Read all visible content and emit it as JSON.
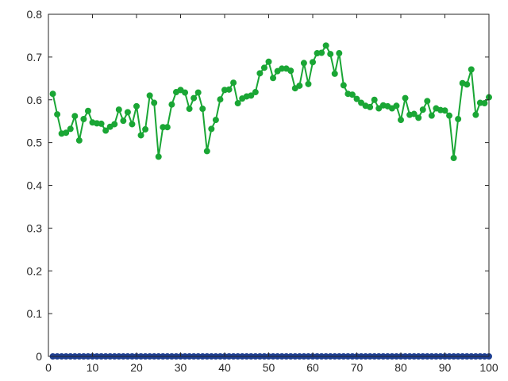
{
  "chart_data": {
    "type": "line",
    "title": "",
    "xlabel": "",
    "ylabel": "",
    "xlim": [
      0,
      100
    ],
    "ylim": [
      0,
      0.8
    ],
    "xticks": [
      0,
      10,
      20,
      30,
      40,
      50,
      60,
      70,
      80,
      90,
      100
    ],
    "yticks": [
      0,
      0.1,
      0.2,
      0.3,
      0.4,
      0.5,
      0.6,
      0.7,
      0.8
    ],
    "grid": false,
    "legend": "none",
    "x": [
      1,
      2,
      3,
      4,
      5,
      6,
      7,
      8,
      9,
      10,
      11,
      12,
      13,
      14,
      15,
      16,
      17,
      18,
      19,
      20,
      21,
      22,
      23,
      24,
      25,
      26,
      27,
      28,
      29,
      30,
      31,
      32,
      33,
      34,
      35,
      36,
      37,
      38,
      39,
      40,
      41,
      42,
      43,
      44,
      45,
      46,
      47,
      48,
      49,
      50,
      51,
      52,
      53,
      54,
      55,
      56,
      57,
      58,
      59,
      60,
      61,
      62,
      63,
      64,
      65,
      66,
      67,
      68,
      69,
      70,
      71,
      72,
      73,
      74,
      75,
      76,
      77,
      78,
      79,
      80,
      81,
      82,
      83,
      84,
      85,
      86,
      87,
      88,
      89,
      90,
      91,
      92,
      93,
      94,
      95,
      96,
      97,
      98,
      99,
      100
    ],
    "series": [
      {
        "color": "#1aa635",
        "marker": "circle",
        "values": [
          0.614,
          0.566,
          0.521,
          0.523,
          0.532,
          0.562,
          0.505,
          0.555,
          0.574,
          0.547,
          0.545,
          0.544,
          0.528,
          0.537,
          0.543,
          0.577,
          0.551,
          0.571,
          0.543,
          0.585,
          0.517,
          0.531,
          0.61,
          0.593,
          0.467,
          0.536,
          0.536,
          0.589,
          0.618,
          0.623,
          0.617,
          0.579,
          0.604,
          0.617,
          0.579,
          0.48,
          0.532,
          0.553,
          0.601,
          0.623,
          0.624,
          0.64,
          0.592,
          0.603,
          0.608,
          0.61,
          0.618,
          0.662,
          0.675,
          0.689,
          0.651,
          0.667,
          0.673,
          0.673,
          0.668,
          0.627,
          0.633,
          0.686,
          0.637,
          0.688,
          0.709,
          0.71,
          0.727,
          0.707,
          0.661,
          0.709,
          0.634,
          0.614,
          0.612,
          0.602,
          0.593,
          0.586,
          0.583,
          0.6,
          0.58,
          0.587,
          0.585,
          0.58,
          0.586,
          0.553,
          0.604,
          0.565,
          0.567,
          0.558,
          0.577,
          0.597,
          0.563,
          0.58,
          0.576,
          0.575,
          0.563,
          0.464,
          0.555,
          0.639,
          0.636,
          0.671,
          0.565,
          0.593,
          0.592,
          0.606
        ]
      },
      {
        "color": "#1f3f91",
        "marker": "circle",
        "values": [
          0,
          0,
          0,
          0,
          0,
          0,
          0,
          0,
          0,
          0,
          0,
          0,
          0,
          0,
          0,
          0,
          0,
          0,
          0,
          0,
          0,
          0,
          0,
          0,
          0,
          0,
          0,
          0,
          0,
          0,
          0,
          0,
          0,
          0,
          0,
          0,
          0,
          0,
          0,
          0,
          0,
          0,
          0,
          0,
          0,
          0,
          0,
          0,
          0,
          0,
          0,
          0,
          0,
          0,
          0,
          0,
          0,
          0,
          0,
          0,
          0,
          0,
          0,
          0,
          0,
          0,
          0,
          0,
          0,
          0,
          0,
          0,
          0,
          0,
          0,
          0,
          0,
          0,
          0,
          0,
          0,
          0,
          0,
          0,
          0,
          0,
          0,
          0,
          0,
          0,
          0,
          0,
          0,
          0,
          0,
          0,
          0,
          0,
          0,
          0
        ]
      }
    ]
  }
}
